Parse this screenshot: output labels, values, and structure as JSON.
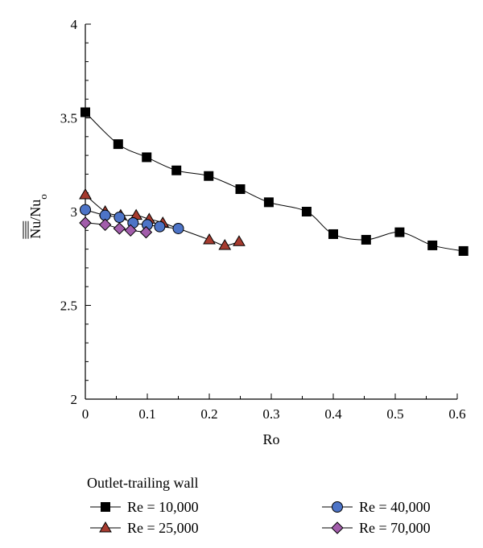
{
  "chart_data": {
    "type": "line",
    "xlabel": "Ro",
    "ylabel_main": "Nu",
    "ylabel_sep": "/Nu",
    "ylabel_sub": "o",
    "xlim": [
      0,
      0.6
    ],
    "ylim": [
      2,
      4
    ],
    "x_ticks": [
      0,
      0.1,
      0.2,
      0.3,
      0.4,
      0.5,
      0.6
    ],
    "y_ticks": [
      2,
      2.5,
      3,
      3.5,
      4
    ],
    "grid": false,
    "legend_title": "Outlet-trailing wall",
    "series": [
      {
        "name": "Re = 10,000",
        "marker": "square",
        "color": "#000000",
        "x": [
          0,
          0.053,
          0.099,
          0.147,
          0.199,
          0.25,
          0.296,
          0.357,
          0.4,
          0.453,
          0.507,
          0.56,
          0.61
        ],
        "y": [
          3.53,
          3.36,
          3.29,
          3.22,
          3.19,
          3.12,
          3.05,
          3.0,
          2.88,
          2.85,
          2.89,
          2.82,
          2.79
        ]
      },
      {
        "name": "Re = 25,000",
        "marker": "triangle",
        "color": "#a63b2f",
        "x": [
          0,
          0.032,
          0.057,
          0.082,
          0.103,
          0.125,
          0.2,
          0.225,
          0.248
        ],
        "y": [
          3.09,
          3.0,
          2.98,
          2.98,
          2.96,
          2.94,
          2.85,
          2.82,
          2.84
        ]
      },
      {
        "name": "Re = 40,000",
        "marker": "circle",
        "color": "#4d74c7",
        "x": [
          0,
          0.032,
          0.055,
          0.077,
          0.1,
          0.12,
          0.15
        ],
        "y": [
          3.01,
          2.98,
          2.97,
          2.94,
          2.93,
          2.92,
          2.91
        ]
      },
      {
        "name": "Re = 70,000",
        "marker": "diamond",
        "color": "#a25dab",
        "x": [
          0,
          0.032,
          0.055,
          0.073,
          0.098
        ],
        "y": [
          2.94,
          2.93,
          2.91,
          2.9,
          2.89
        ]
      }
    ]
  }
}
